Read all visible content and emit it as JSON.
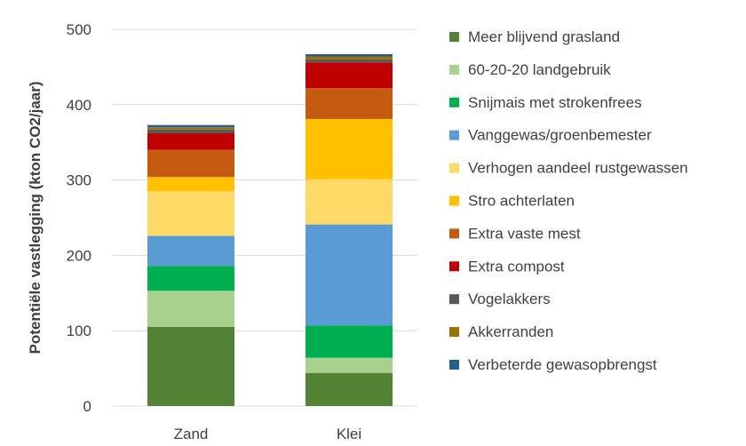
{
  "chart_data": {
    "type": "bar",
    "stacked": true,
    "title": "",
    "xlabel": "",
    "ylabel": "Potentiële vastlegging (kton CO2/jaar)",
    "ylim": [
      0,
      500
    ],
    "yticks": [
      0,
      100,
      200,
      300,
      400,
      500
    ],
    "grid": true,
    "legend_position": "right",
    "categories": [
      "Zand",
      "Klei"
    ],
    "series": [
      {
        "name": "Meer blijvend grasland",
        "color": "#548235",
        "values": [
          105,
          44
        ]
      },
      {
        "name": "60-20-20 landgebruik",
        "color": "#a9d18e",
        "values": [
          48,
          20
        ]
      },
      {
        "name": "Snijmais met strokenfrees",
        "color": "#00b050",
        "values": [
          33,
          43
        ]
      },
      {
        "name": "Vanggewas/groenbemester",
        "color": "#5b9bd5",
        "values": [
          40,
          134
        ]
      },
      {
        "name": "Verhogen aandeel rustgewassen",
        "color": "#ffd966",
        "values": [
          59,
          60
        ]
      },
      {
        "name": "Stro achterlaten",
        "color": "#ffc000",
        "values": [
          19,
          80
        ]
      },
      {
        "name": "Extra vaste mest",
        "color": "#c55a11",
        "values": [
          36,
          41
        ]
      },
      {
        "name": "Extra compost",
        "color": "#c00000",
        "values": [
          22,
          34
        ]
      },
      {
        "name": "Vogelakkers",
        "color": "#595959",
        "values": [
          5,
          4
        ]
      },
      {
        "name": "Akkerranden",
        "color": "#997300",
        "values": [
          3,
          4
        ]
      },
      {
        "name": "Verbeterde gewasopbrengst",
        "color": "#255e91",
        "values": [
          3,
          3
        ]
      }
    ]
  }
}
